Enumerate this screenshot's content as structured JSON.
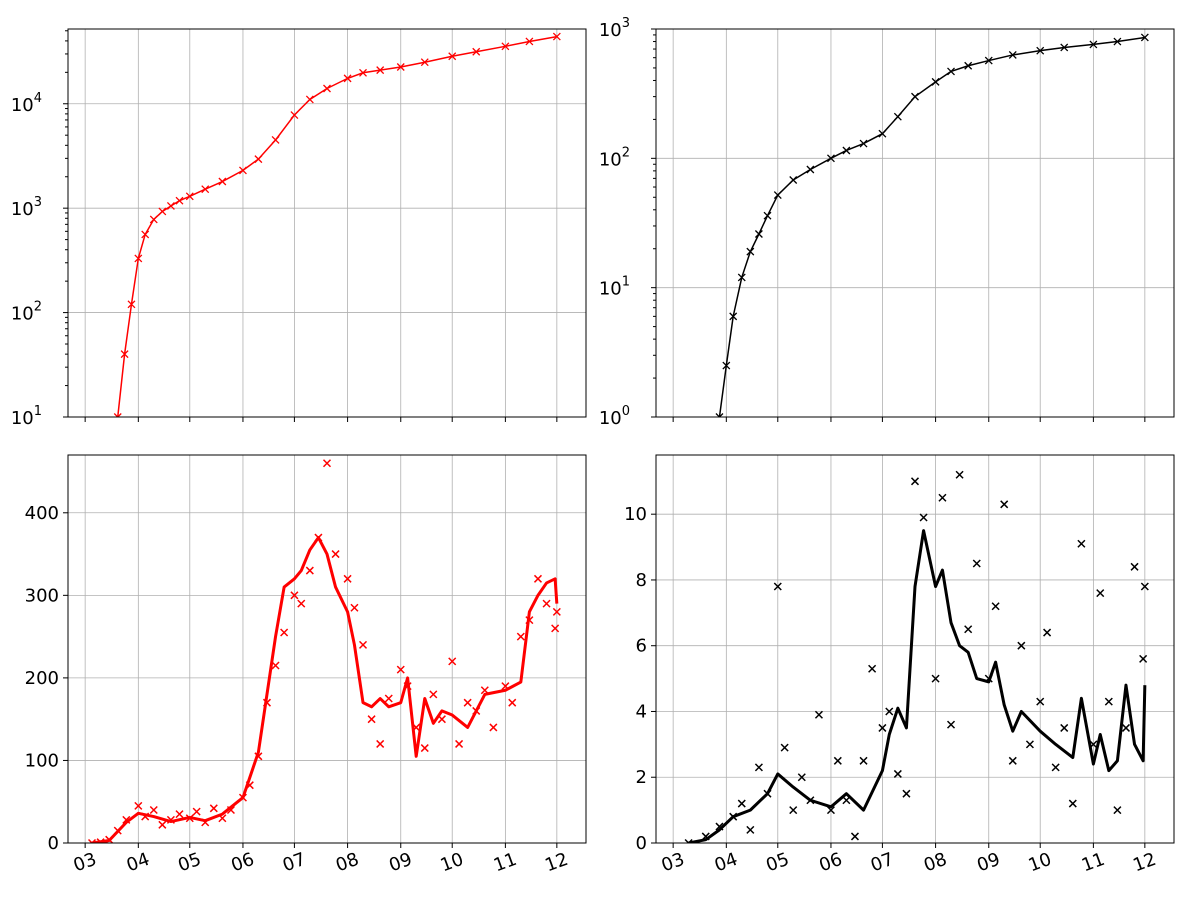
{
  "figure": {
    "x_tick_labels": [
      "03",
      "04",
      "05",
      "06",
      "07",
      "08",
      "09",
      "10",
      "11",
      "12"
    ]
  },
  "chart_data": [
    {
      "type": "scatter",
      "panel": "top-left",
      "title": "",
      "xlabel": "",
      "ylabel": "",
      "yscale": "log",
      "ylim": [
        10,
        52000
      ],
      "y_tick_labels": [
        "10^1",
        "10^2",
        "10^3",
        "10^4"
      ],
      "grid": true,
      "color": "#ff0000",
      "marker": "x",
      "series": [
        {
          "type": "cumulative",
          "x": [
            "03-20",
            "03-24",
            "03-28",
            "04-01",
            "04-05",
            "04-10",
            "04-15",
            "04-20",
            "04-25",
            "05-01",
            "05-10",
            "05-20",
            "06-01",
            "06-10",
            "06-20",
            "07-01",
            "07-10",
            "07-20",
            "08-01",
            "08-10",
            "08-20",
            "09-01",
            "09-15",
            "10-01",
            "10-15",
            "11-01",
            "11-15",
            "12-01"
          ],
          "values": [
            10,
            40,
            120,
            330,
            560,
            780,
            930,
            1050,
            1180,
            1300,
            1520,
            1800,
            2300,
            2950,
            4500,
            7800,
            11000,
            14000,
            17500,
            19800,
            21000,
            22500,
            25000,
            28500,
            31500,
            35500,
            39500,
            44000
          ]
        }
      ]
    },
    {
      "type": "scatter",
      "panel": "top-right",
      "title": "",
      "xlabel": "",
      "ylabel": "",
      "yscale": "log",
      "ylim": [
        1,
        1000
      ],
      "y_tick_labels": [
        "10^0",
        "10^1",
        "10^2",
        "10^3"
      ],
      "grid": true,
      "color": "#000000",
      "marker": "x",
      "series": [
        {
          "type": "cumulative",
          "x": [
            "03-28",
            "04-01",
            "04-05",
            "04-10",
            "04-15",
            "04-20",
            "04-25",
            "05-01",
            "05-10",
            "05-20",
            "06-01",
            "06-10",
            "06-20",
            "07-01",
            "07-10",
            "07-20",
            "08-01",
            "08-10",
            "08-20",
            "09-01",
            "09-15",
            "10-01",
            "10-15",
            "11-01",
            "11-15",
            "12-01"
          ],
          "values": [
            1,
            2.5,
            6,
            12,
            19,
            26,
            36,
            52,
            68,
            82,
            100,
            115,
            130,
            155,
            210,
            300,
            390,
            470,
            520,
            570,
            630,
            680,
            720,
            760,
            800,
            860
          ]
        }
      ]
    },
    {
      "type": "scatter",
      "panel": "bottom-left",
      "title": "",
      "xlabel": "",
      "ylabel": "",
      "ylim": [
        0,
        470
      ],
      "y_ticks": [
        0,
        100,
        200,
        300,
        400
      ],
      "grid": true,
      "color": "#ff0000",
      "marker": "x",
      "series": [
        {
          "type": "daily",
          "x": [
            "03-05",
            "03-10",
            "03-15",
            "03-20",
            "03-25",
            "04-01",
            "04-05",
            "04-10",
            "04-15",
            "04-20",
            "04-25",
            "05-01",
            "05-05",
            "05-10",
            "05-15",
            "05-20",
            "05-25",
            "06-01",
            "06-05",
            "06-10",
            "06-15",
            "06-20",
            "06-25",
            "07-01",
            "07-05",
            "07-10",
            "07-15",
            "07-20",
            "07-25",
            "08-01",
            "08-05",
            "08-10",
            "08-15",
            "08-20",
            "08-25",
            "09-01",
            "09-05",
            "09-10",
            "09-15",
            "09-20",
            "09-25",
            "10-01",
            "10-05",
            "10-10",
            "10-15",
            "10-20",
            "10-25",
            "11-01",
            "11-05",
            "11-10",
            "11-15",
            "11-20",
            "11-25",
            "11-30",
            "12-01"
          ],
          "values": [
            0,
            1,
            4,
            15,
            28,
            45,
            32,
            40,
            22,
            28,
            35,
            30,
            38,
            25,
            42,
            30,
            40,
            55,
            70,
            105,
            170,
            215,
            255,
            300,
            290,
            330,
            370,
            460,
            350,
            320,
            285,
            240,
            150,
            120,
            175,
            210,
            190,
            140,
            115,
            180,
            150,
            220,
            120,
            170,
            160,
            185,
            140,
            190,
            170,
            250,
            270,
            320,
            290,
            260,
            280
          ]
        },
        {
          "type": "rolling_average",
          "x": [
            "03-05",
            "03-15",
            "03-25",
            "04-01",
            "04-10",
            "04-20",
            "05-01",
            "05-10",
            "05-20",
            "06-01",
            "06-10",
            "06-15",
            "06-20",
            "06-25",
            "07-01",
            "07-05",
            "07-10",
            "07-15",
            "07-20",
            "07-25",
            "08-01",
            "08-05",
            "08-10",
            "08-15",
            "08-20",
            "08-25",
            "09-01",
            "09-05",
            "09-10",
            "09-15",
            "09-20",
            "09-25",
            "10-01",
            "10-10",
            "10-20",
            "11-01",
            "11-10",
            "11-15",
            "11-20",
            "11-25",
            "11-30",
            "12-01"
          ],
          "values": [
            0,
            3,
            25,
            36,
            32,
            26,
            31,
            27,
            35,
            55,
            110,
            180,
            250,
            310,
            320,
            330,
            355,
            370,
            350,
            310,
            280,
            240,
            170,
            165,
            175,
            165,
            170,
            200,
            105,
            175,
            145,
            160,
            155,
            140,
            180,
            185,
            195,
            280,
            300,
            315,
            320,
            290
          ]
        }
      ]
    },
    {
      "type": "scatter",
      "panel": "bottom-right",
      "title": "",
      "xlabel": "",
      "ylabel": "",
      "ylim": [
        0,
        11.8
      ],
      "y_ticks": [
        0,
        2,
        4,
        6,
        8,
        10
      ],
      "grid": true,
      "color": "#000000",
      "marker": "x",
      "series": [
        {
          "type": "daily",
          "x": [
            "03-10",
            "03-20",
            "03-28",
            "04-05",
            "04-10",
            "04-15",
            "04-20",
            "04-25",
            "05-01",
            "05-05",
            "05-10",
            "05-15",
            "05-20",
            "05-25",
            "06-01",
            "06-05",
            "06-10",
            "06-15",
            "06-20",
            "06-25",
            "07-01",
            "07-05",
            "07-10",
            "07-15",
            "07-20",
            "07-25",
            "08-01",
            "08-05",
            "08-10",
            "08-15",
            "08-20",
            "08-25",
            "09-01",
            "09-05",
            "09-10",
            "09-15",
            "09-20",
            "09-25",
            "10-01",
            "10-05",
            "10-10",
            "10-15",
            "10-20",
            "10-25",
            "11-01",
            "11-05",
            "11-10",
            "11-15",
            "11-20",
            "11-25",
            "11-30",
            "12-01"
          ],
          "values": [
            0,
            0.2,
            0.5,
            0.8,
            1.2,
            0.4,
            2.3,
            1.5,
            7.8,
            2.9,
            1.0,
            2.0,
            1.3,
            3.9,
            1.0,
            2.5,
            1.3,
            0.2,
            2.5,
            5.3,
            3.5,
            4.0,
            2.1,
            1.5,
            11.0,
            9.9,
            5.0,
            10.5,
            3.6,
            11.2,
            6.5,
            8.5,
            5.0,
            7.2,
            10.3,
            2.5,
            6.0,
            3.0,
            4.3,
            6.4,
            2.3,
            3.5,
            1.2,
            9.1,
            3.0,
            7.6,
            4.3,
            1.0,
            3.5,
            8.4,
            5.6,
            7.8
          ]
        },
        {
          "type": "rolling_average",
          "x": [
            "03-10",
            "03-20",
            "03-28",
            "04-05",
            "04-15",
            "04-25",
            "05-01",
            "05-10",
            "05-20",
            "06-01",
            "06-10",
            "06-20",
            "07-01",
            "07-05",
            "07-10",
            "07-15",
            "07-20",
            "07-25",
            "08-01",
            "08-05",
            "08-10",
            "08-15",
            "08-20",
            "08-25",
            "09-01",
            "09-05",
            "09-10",
            "09-15",
            "09-20",
            "10-01",
            "10-10",
            "10-20",
            "10-25",
            "11-01",
            "11-05",
            "11-10",
            "11-15",
            "11-20",
            "11-25",
            "11-30",
            "12-01"
          ],
          "values": [
            0,
            0.1,
            0.4,
            0.8,
            1.0,
            1.5,
            2.1,
            1.7,
            1.3,
            1.1,
            1.5,
            1.0,
            2.2,
            3.3,
            4.1,
            3.5,
            7.8,
            9.5,
            7.8,
            8.3,
            6.7,
            6.0,
            5.8,
            5.0,
            4.9,
            5.5,
            4.2,
            3.4,
            4.0,
            3.4,
            3.0,
            2.6,
            4.4,
            2.4,
            3.3,
            2.2,
            2.5,
            4.8,
            3.0,
            2.5,
            4.8
          ]
        }
      ]
    }
  ]
}
